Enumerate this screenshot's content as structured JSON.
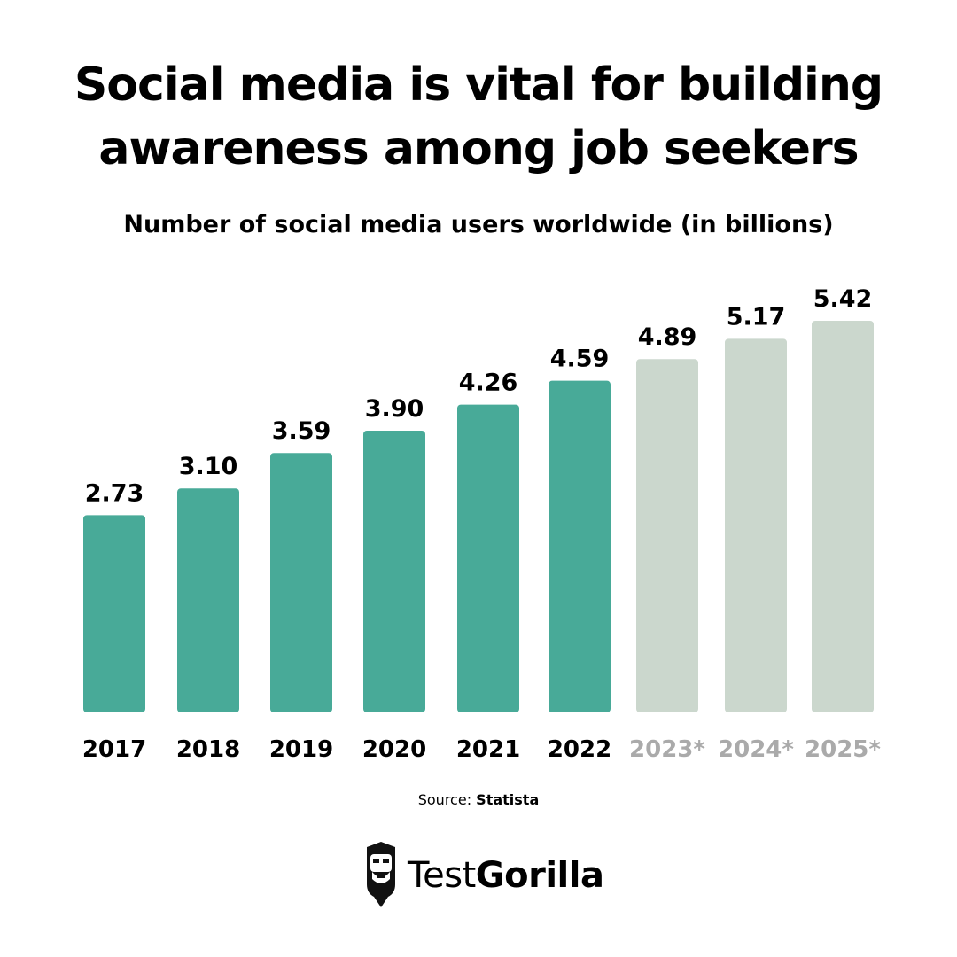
{
  "title": {
    "line1": "Social media is vital for building",
    "line2": "awareness among job seekers"
  },
  "subtitle": "Number of social media users worldwide (in billions)",
  "chart_data": {
    "type": "bar",
    "categories": [
      "2017",
      "2018",
      "2019",
      "2020",
      "2021",
      "2022",
      "2023*",
      "2024*",
      "2025*"
    ],
    "values": [
      2.73,
      3.1,
      3.59,
      3.9,
      4.26,
      4.59,
      4.89,
      5.17,
      5.42
    ],
    "value_labels": [
      "2.73",
      "3.10",
      "3.59",
      "3.90",
      "4.26",
      "4.59",
      "4.89",
      "5.17",
      "5.42"
    ],
    "forecast": [
      false,
      false,
      false,
      false,
      false,
      false,
      true,
      true,
      true
    ],
    "title": "Number of social media users worldwide (in billions)",
    "xlabel": "",
    "ylabel": "",
    "ylim": [
      0,
      5.5
    ],
    "grid": false,
    "colors": {
      "actual": "#48aa98",
      "forecast": "#cbd7cd",
      "actual_label": "#000000",
      "forecast_label": "#aaaaaa"
    }
  },
  "source": {
    "prefix": "Source:",
    "name": "Statista"
  },
  "brand": {
    "name_regular": "Test",
    "name_bold": "Gorilla",
    "icon": "gorilla-logo-icon"
  }
}
